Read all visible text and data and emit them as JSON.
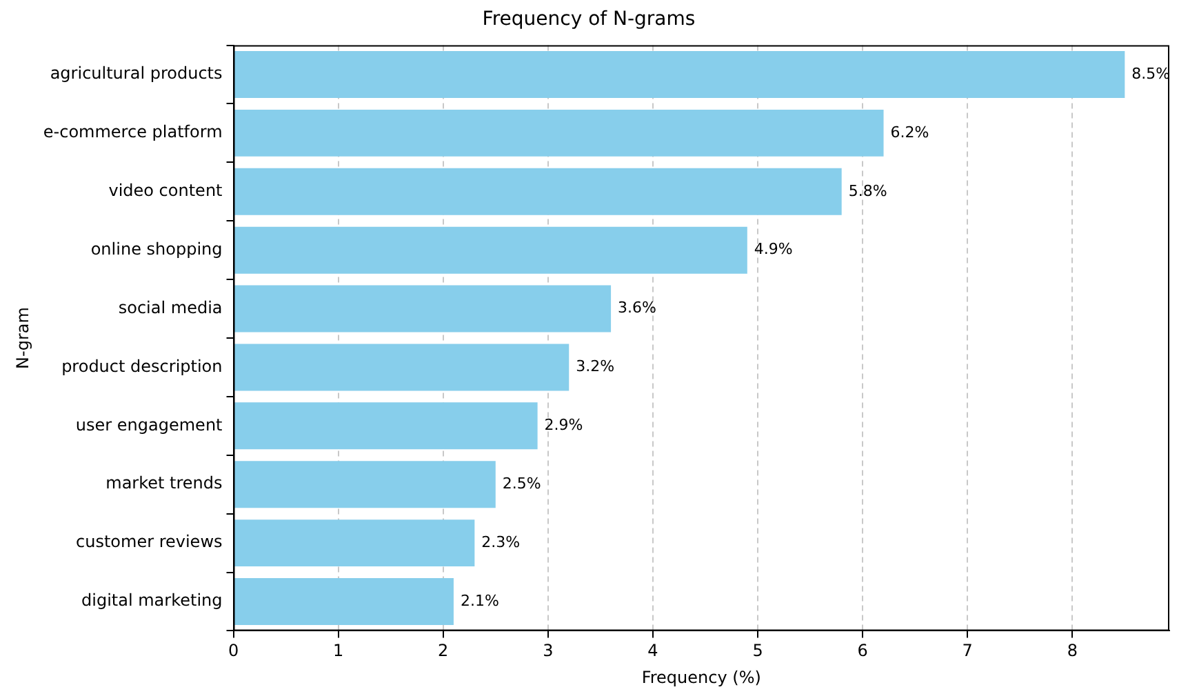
{
  "chart_data": {
    "type": "bar",
    "orientation": "horizontal",
    "title": "Frequency of N-grams",
    "xlabel": "Frequency (%)",
    "ylabel": "N-gram",
    "categories": [
      "agricultural products",
      "e-commerce platform",
      "video content",
      "online shopping",
      "social media",
      "product description",
      "user engagement",
      "market trends",
      "customer reviews",
      "digital marketing"
    ],
    "values": [
      8.5,
      6.2,
      5.8,
      4.9,
      3.6,
      3.2,
      2.9,
      2.5,
      2.3,
      2.1
    ],
    "value_labels": [
      "8.5%",
      "6.2%",
      "5.8%",
      "4.9%",
      "3.6%",
      "3.2%",
      "2.9%",
      "2.5%",
      "2.3%",
      "2.1%"
    ],
    "color": "#87ceeb",
    "xlim": [
      0,
      8.925
    ],
    "xticks": [
      0,
      1,
      2,
      3,
      4,
      5,
      6,
      7,
      8
    ],
    "grid": "x",
    "legend": false
  }
}
